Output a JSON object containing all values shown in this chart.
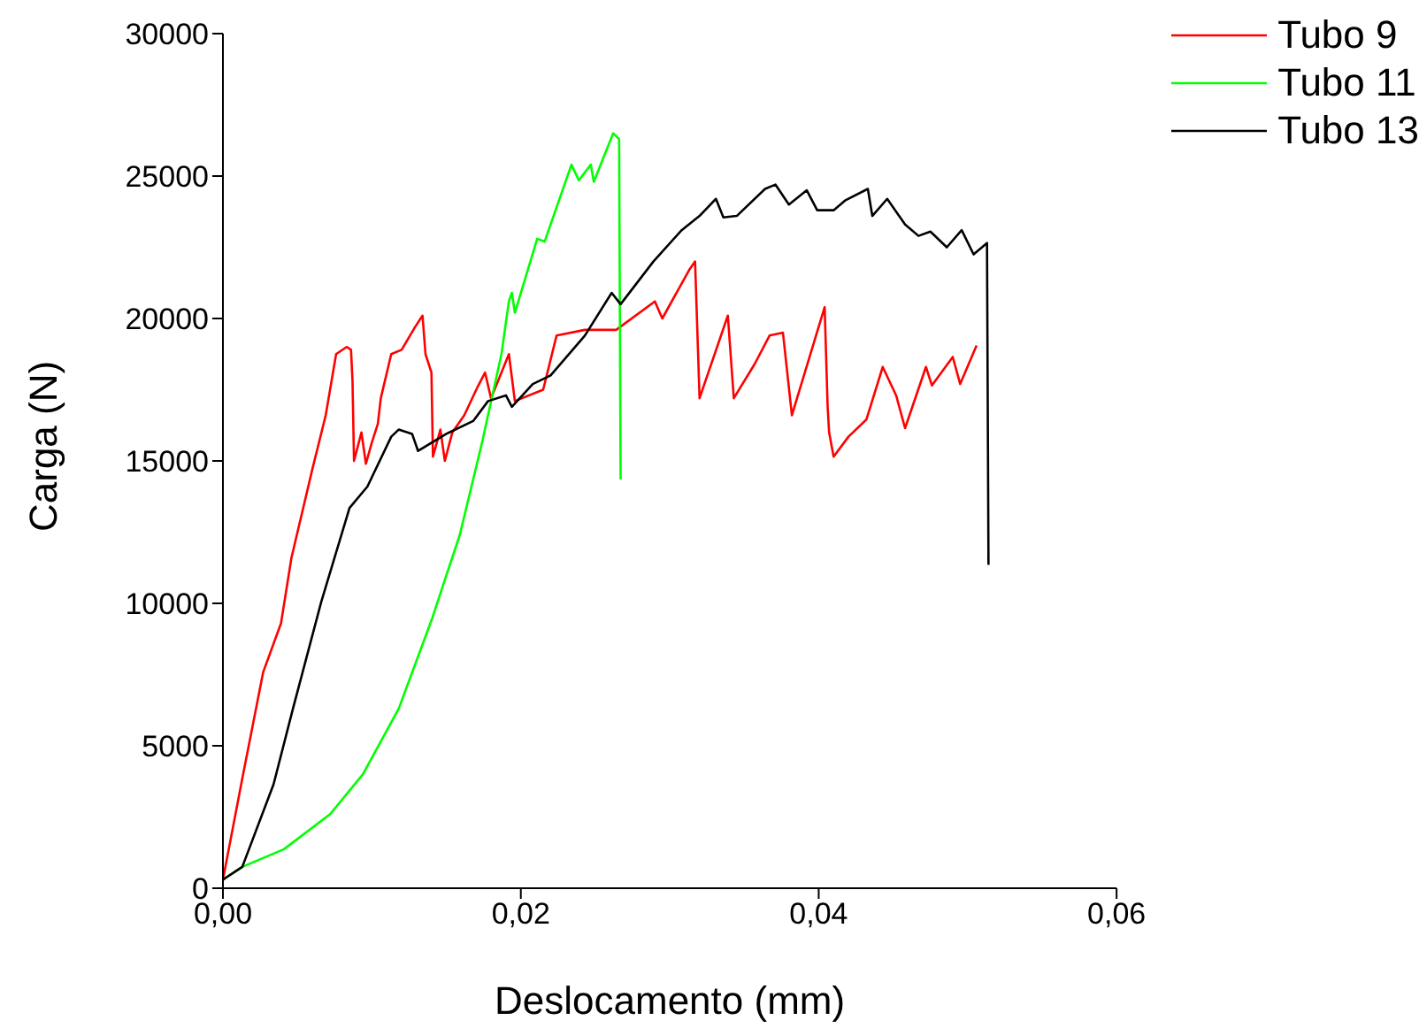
{
  "chart_data": {
    "type": "line",
    "xlabel": "Deslocamento (mm)",
    "ylabel": "Carga (N)",
    "xlim": [
      0,
      0.06
    ],
    "xticks": [
      {
        "value": 0,
        "label": "0,00"
      },
      {
        "value": 0.02,
        "label": "0,02"
      },
      {
        "value": 0.04,
        "label": "0,04"
      },
      {
        "value": 0.06,
        "label": "0,06"
      }
    ],
    "ylim": [
      0,
      30000
    ],
    "yticks": [
      0,
      5000,
      10000,
      15000,
      20000,
      25000,
      30000
    ],
    "grid": false,
    "legend": "top right",
    "marker": "none",
    "line_style": "solid",
    "series": [
      {
        "name": "Tubo 9",
        "color": "#ff0000",
        "x": [
          0,
          0.0013,
          0.0027,
          0.0039,
          0.0046,
          0.006,
          0.0069,
          0.0076,
          0.0083,
          0.0086,
          0.0087,
          0.0088,
          0.0093,
          0.0096,
          0.01,
          0.0104,
          0.0106,
          0.0113,
          0.012,
          0.0129,
          0.0134,
          0.0136,
          0.014,
          0.0141,
          0.0146,
          0.0149,
          0.0154,
          0.0162,
          0.0171,
          0.0176,
          0.018,
          0.0192,
          0.0196,
          0.0215,
          0.0224,
          0.0243,
          0.0264,
          0.029,
          0.0295,
          0.0313,
          0.0317,
          0.032,
          0.0339,
          0.0343,
          0.0357,
          0.0367,
          0.0376,
          0.0382,
          0.0404,
          0.0406,
          0.0407,
          0.041,
          0.042,
          0.0432,
          0.0443,
          0.0452,
          0.0458,
          0.0472,
          0.0476,
          0.049,
          0.0495,
          0.0506
        ],
        "values": [
          300,
          3850,
          7580,
          9300,
          11600,
          14700,
          16600,
          18750,
          19000,
          18900,
          17800,
          15000,
          16000,
          14900,
          15650,
          16300,
          17200,
          18750,
          18900,
          19700,
          20100,
          18750,
          18100,
          15150,
          16100,
          15000,
          16000,
          16600,
          17600,
          18100,
          17200,
          18750,
          17100,
          17500,
          19400,
          19600,
          19600,
          20600,
          20000,
          21700,
          22000,
          17200,
          20100,
          17200,
          18400,
          19400,
          19500,
          16600,
          20400,
          16900,
          16000,
          15150,
          15850,
          16450,
          18300,
          17300,
          16150,
          18300,
          17650,
          18650,
          17700,
          19050
        ]
      },
      {
        "name": "Tubo 11",
        "color": "#00ff00",
        "x": [
          0,
          0.0013,
          0.0041,
          0.0072,
          0.0094,
          0.0118,
          0.014,
          0.0159,
          0.0174,
          0.0187,
          0.0192,
          0.0194,
          0.0196,
          0.0211,
          0.0216,
          0.0234,
          0.0239,
          0.0247,
          0.0249,
          0.0262,
          0.0266,
          0.0267
        ],
        "values": [
          300,
          750,
          1370,
          2600,
          4000,
          6300,
          9400,
          12400,
          15650,
          18750,
          20600,
          20900,
          20200,
          22800,
          22700,
          25400,
          24850,
          25400,
          24800,
          26500,
          26300,
          14350
        ]
      },
      {
        "name": "Tubo 13",
        "color": "#000000",
        "x": [
          0,
          0.0013,
          0.0034,
          0.0047,
          0.0066,
          0.0085,
          0.0097,
          0.0113,
          0.0118,
          0.0127,
          0.0131,
          0.015,
          0.0168,
          0.0178,
          0.019,
          0.0194,
          0.0208,
          0.022,
          0.0243,
          0.0261,
          0.0267,
          0.0289,
          0.0308,
          0.032,
          0.0331,
          0.0336,
          0.0345,
          0.0364,
          0.0371,
          0.038,
          0.0392,
          0.0399,
          0.041,
          0.0418,
          0.0433,
          0.0436,
          0.0446,
          0.0458,
          0.0467,
          0.0475,
          0.0486,
          0.0496,
          0.0504,
          0.0513,
          0.0514
        ],
        "values": [
          300,
          750,
          3650,
          6300,
          10050,
          13350,
          14100,
          15850,
          16100,
          15950,
          15350,
          15950,
          16400,
          17100,
          17300,
          16900,
          17700,
          18000,
          19400,
          20900,
          20500,
          22000,
          23100,
          23600,
          24200,
          23550,
          23600,
          24550,
          24700,
          24000,
          24500,
          23800,
          23800,
          24150,
          24550,
          23600,
          24200,
          23300,
          22900,
          23050,
          22500,
          23100,
          22250,
          22650,
          11350
        ]
      }
    ]
  }
}
